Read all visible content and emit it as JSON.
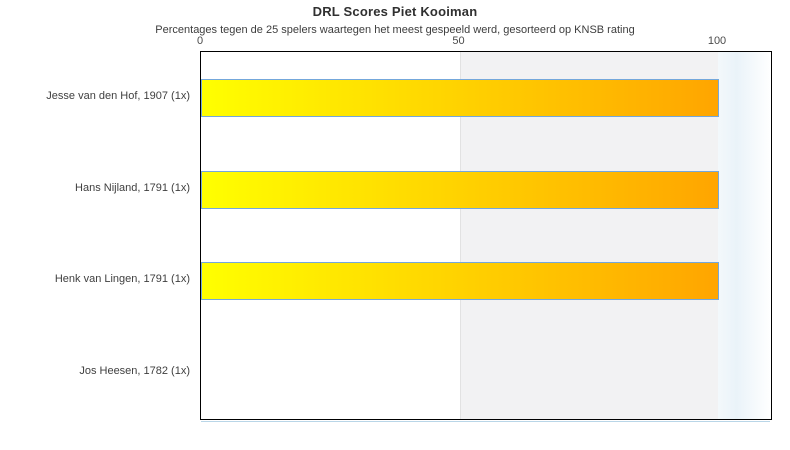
{
  "chart_data": {
    "type": "bar",
    "orientation": "horizontal",
    "title": "DRL Scores Piet Kooiman",
    "subtitle": "Percentages tegen de 25 spelers waartegen het meest gespeeld werd, gesorteerd op KNSB rating",
    "categories": [
      "Jesse van den Hof, 1907 (1x)",
      "Hans Nijland, 1791 (1x)",
      "Henk van Lingen, 1791 (1x)",
      "Jos Heesen, 1782 (1x)"
    ],
    "values": [
      100,
      100,
      100,
      0
    ],
    "xlabel": "",
    "ylabel": "",
    "x_ticks": [
      0,
      50,
      100
    ],
    "xlim": [
      0,
      110
    ],
    "grid": false,
    "legend": "none",
    "bands": [
      {
        "from": 50,
        "to": 100,
        "color": "#f2f2f3"
      },
      {
        "from": 100,
        "to": 110,
        "color": "gradient-lightblue-to-white"
      }
    ],
    "colors": {
      "bar_gradient_start": "#ffff00",
      "bar_gradient_end": "#ffa500",
      "bar_border": "#74a7db",
      "plot_border": "#000000",
      "band_gray": "#f2f2f3",
      "bottom_shadow": "#b9d6e8",
      "title_text": "#303030",
      "label_text": "#3f3f3f"
    }
  }
}
